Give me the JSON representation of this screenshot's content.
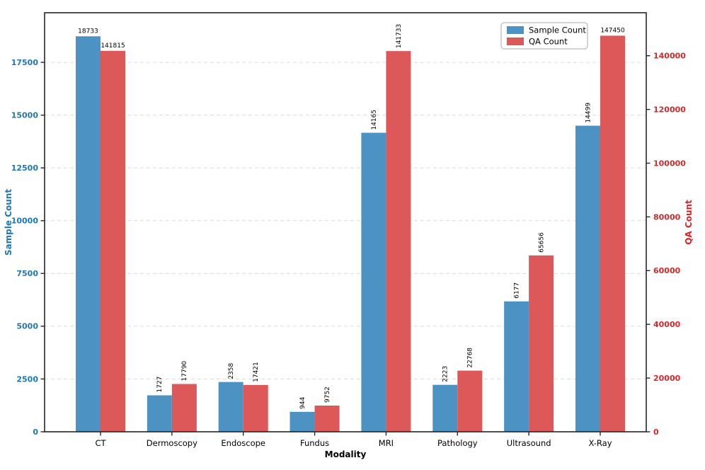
{
  "chart_data": {
    "type": "bar",
    "title": "",
    "xlabel": "Modality",
    "categories": [
      "CT",
      "Dermoscopy",
      "Endoscope",
      "Fundus",
      "MRI",
      "Pathology",
      "Ultrasound",
      "X-Ray"
    ],
    "series": [
      {
        "name": "Sample Count",
        "axis": "left",
        "color": "#4C92C3",
        "values": [
          18733,
          1727,
          2358,
          944,
          14165,
          2223,
          6177,
          14499
        ],
        "horizontal_value_labels": [
          0
        ]
      },
      {
        "name": "QA Count",
        "axis": "right",
        "color": "#DD5858",
        "values": [
          141815,
          17790,
          17421,
          9752,
          141733,
          22768,
          65656,
          147450
        ],
        "horizontal_value_labels": [
          0,
          7
        ]
      }
    ],
    "axes": {
      "left": {
        "label": "Sample Count",
        "color": "#1F77B4",
        "ticks": [
          0,
          2500,
          5000,
          7500,
          10000,
          12500,
          15000,
          17500
        ],
        "range": [
          0,
          19850
        ]
      },
      "right": {
        "label": "QA Count",
        "color": "#D62728",
        "ticks": [
          0,
          20000,
          40000,
          60000,
          80000,
          100000,
          120000,
          140000
        ],
        "range": [
          0,
          156000
        ]
      },
      "x": {
        "label": "Modality",
        "color": "#000000"
      }
    },
    "legend": {
      "position": "upper-right",
      "entries": [
        {
          "label": "Sample Count",
          "color": "#4C92C3"
        },
        {
          "label": "QA Count",
          "color": "#DD5858"
        }
      ]
    },
    "grid": {
      "show": true,
      "axis": "left",
      "style": "dashed",
      "color": "#DCDCDC"
    },
    "frame_color": "#262626",
    "value_label_color": "#000000"
  }
}
